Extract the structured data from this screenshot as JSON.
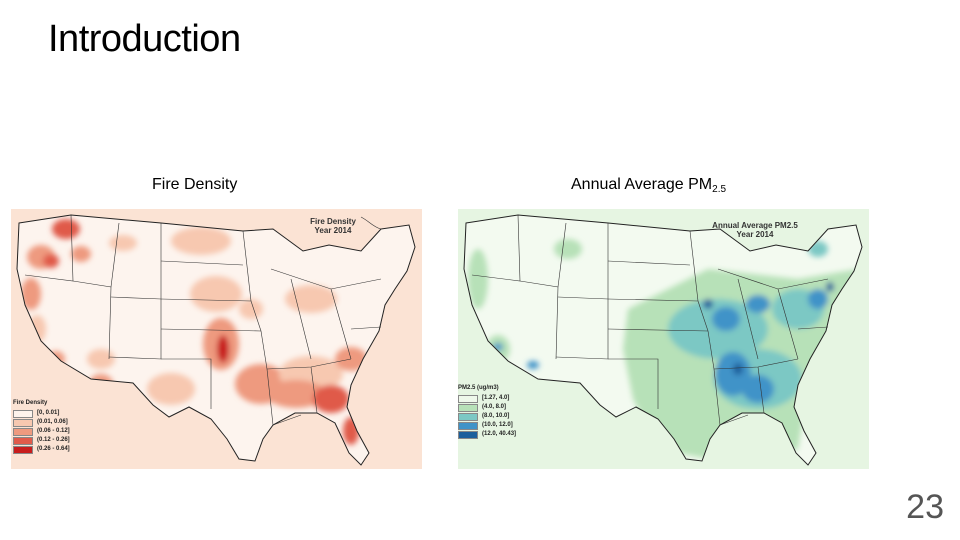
{
  "slide": {
    "title": "Introduction",
    "page_number": "23"
  },
  "left_panel": {
    "caption": "Fire Density",
    "map_title_line1": "Fire Density",
    "map_title_line2": "Year 2014",
    "legend": {
      "title": "Fire Density",
      "items": [
        {
          "label": "[0, 0.01]",
          "color": "#fdf3ec"
        },
        {
          "label": "(0.01, 0.06]",
          "color": "#f7c8b0"
        },
        {
          "label": "(0.06 - 0.12]",
          "color": "#ee9a7f"
        },
        {
          "label": "(0.12 - 0.26]",
          "color": "#e05a4a"
        },
        {
          "label": "(0.26 - 0.64]",
          "color": "#c81d1d"
        }
      ]
    }
  },
  "right_panel": {
    "caption_main": "Annual Average PM",
    "caption_sub": "2.5",
    "map_title_line1": "Annual Average PM2.5",
    "map_title_line2": "Year 2014",
    "legend": {
      "title": "PM2.5 (ug/m3)",
      "items": [
        {
          "label": "[1.27, 4.0]",
          "color": "#eef8ea"
        },
        {
          "label": "(4.0, 8.0]",
          "color": "#b7e1b8"
        },
        {
          "label": "(8.0, 10.0]",
          "color": "#7cc8c4"
        },
        {
          "label": "(10.0, 12.0]",
          "color": "#3f93c8"
        },
        {
          "label": "(12.0, 40.43]",
          "color": "#1c5f9c"
        }
      ]
    }
  }
}
